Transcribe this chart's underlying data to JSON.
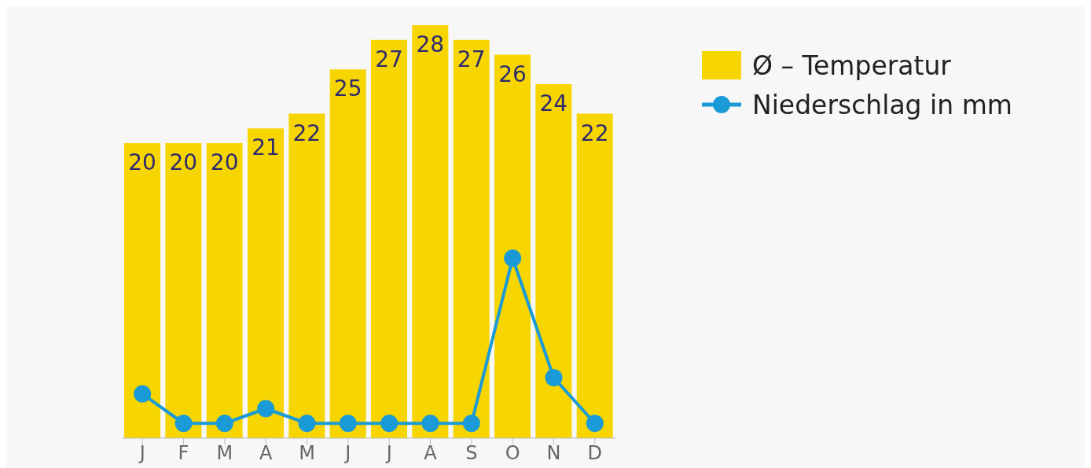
{
  "chart_data": {
    "type": "bar",
    "categories": [
      "J",
      "F",
      "M",
      "A",
      "M",
      "J",
      "J",
      "A",
      "S",
      "O",
      "N",
      "D"
    ],
    "series": [
      {
        "name": "Ø – Temperatur",
        "color": "#f7d500",
        "values": [
          20,
          20,
          20,
          21,
          22,
          25,
          27,
          28,
          27,
          26,
          24,
          22
        ],
        "value_labels": [
          "20",
          "20",
          "20",
          "21",
          "22",
          "25",
          "27",
          "28",
          "27",
          "26",
          "24",
          "22"
        ]
      },
      {
        "name": "Niederschlag in mm",
        "type": "line",
        "color": "#1a9ad6",
        "values": [
          3.0,
          1.0,
          1.0,
          2.0,
          1.0,
          1.0,
          1.0,
          1.0,
          1.0,
          12.2,
          4.1,
          1.0
        ]
      }
    ],
    "legend": "top right",
    "marker": "circle",
    "line_style": "solid"
  }
}
